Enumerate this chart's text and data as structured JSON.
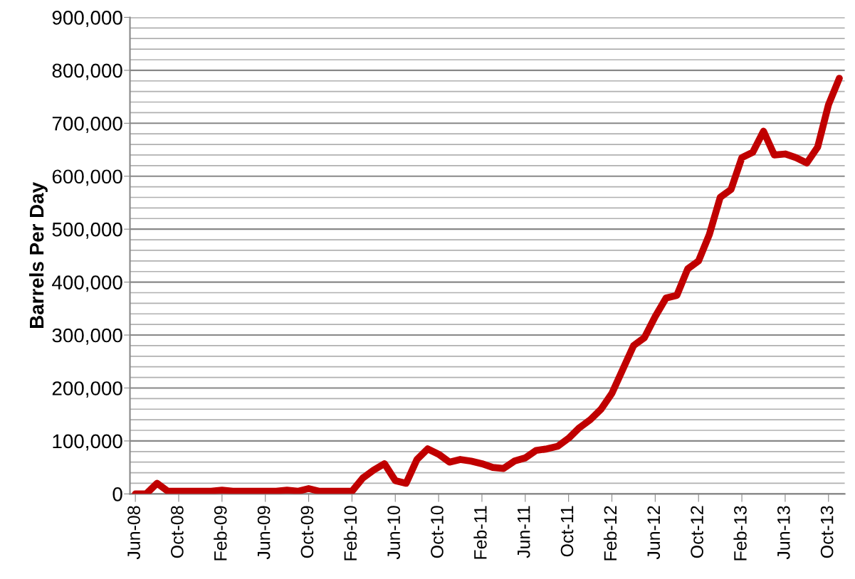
{
  "chart_data": {
    "type": "line",
    "ylabel": "Barrels Per Day",
    "categories": [
      "Jun-08",
      null,
      null,
      null,
      "Oct-08",
      null,
      null,
      null,
      "Feb-09",
      null,
      null,
      null,
      "Jun-09",
      null,
      null,
      null,
      "Oct-09",
      null,
      null,
      null,
      "Feb-10",
      null,
      null,
      null,
      "Jun-10",
      null,
      null,
      null,
      "Oct-10",
      null,
      null,
      null,
      "Feb-11",
      null,
      null,
      null,
      "Jun-11",
      null,
      null,
      null,
      "Oct-11",
      null,
      null,
      null,
      "Feb-12",
      null,
      null,
      null,
      "Jun-12",
      null,
      null,
      null,
      "Oct-12",
      null,
      null,
      null,
      "Feb-13",
      null,
      null,
      null,
      "Jun-13",
      null,
      null,
      null,
      "Oct-13",
      null
    ],
    "series": [
      {
        "color": "#c00000",
        "values": [
          0,
          0,
          20000,
          5000,
          5000,
          5000,
          5000,
          5000,
          7000,
          5000,
          5000,
          5000,
          5000,
          5000,
          7000,
          5000,
          10000,
          5000,
          5000,
          5000,
          5000,
          30000,
          45000,
          57000,
          25000,
          20000,
          65000,
          85000,
          75000,
          60000,
          65000,
          62000,
          57000,
          50000,
          48000,
          62000,
          68000,
          82000,
          85000,
          90000,
          105000,
          125000,
          140000,
          160000,
          190000,
          235000,
          280000,
          295000,
          335000,
          370000,
          375000,
          425000,
          440000,
          490000,
          560000,
          575000,
          635000,
          645000,
          685000,
          640000,
          642000,
          635000,
          625000,
          655000,
          735000,
          785000
        ]
      }
    ],
    "ylim": [
      0,
      900000
    ],
    "yticks": [
      {
        "value": 0,
        "label": "0"
      },
      {
        "value": 20000,
        "label": null
      },
      {
        "value": 40000,
        "label": null
      },
      {
        "value": 60000,
        "label": null
      },
      {
        "value": 80000,
        "label": null
      },
      {
        "value": 100000,
        "label": "100,000"
      },
      {
        "value": 120000,
        "label": null
      },
      {
        "value": 140000,
        "label": null
      },
      {
        "value": 160000,
        "label": null
      },
      {
        "value": 180000,
        "label": null
      },
      {
        "value": 200000,
        "label": "200,000"
      },
      {
        "value": 220000,
        "label": null
      },
      {
        "value": 240000,
        "label": null
      },
      {
        "value": 260000,
        "label": null
      },
      {
        "value": 280000,
        "label": null
      },
      {
        "value": 300000,
        "label": "300,000"
      },
      {
        "value": 320000,
        "label": null
      },
      {
        "value": 340000,
        "label": null
      },
      {
        "value": 360000,
        "label": null
      },
      {
        "value": 380000,
        "label": null
      },
      {
        "value": 400000,
        "label": "400,000"
      },
      {
        "value": 420000,
        "label": null
      },
      {
        "value": 440000,
        "label": null
      },
      {
        "value": 460000,
        "label": null
      },
      {
        "value": 480000,
        "label": null
      },
      {
        "value": 500000,
        "label": "500,000"
      },
      {
        "value": 520000,
        "label": null
      },
      {
        "value": 540000,
        "label": null
      },
      {
        "value": 560000,
        "label": null
      },
      {
        "value": 580000,
        "label": null
      },
      {
        "value": 600000,
        "label": "600,000"
      },
      {
        "value": 620000,
        "label": null
      },
      {
        "value": 640000,
        "label": null
      },
      {
        "value": 660000,
        "label": null
      },
      {
        "value": 680000,
        "label": null
      },
      {
        "value": 700000,
        "label": "700,000"
      },
      {
        "value": 720000,
        "label": null
      },
      {
        "value": 740000,
        "label": null
      },
      {
        "value": 760000,
        "label": null
      },
      {
        "value": 780000,
        "label": null
      },
      {
        "value": 800000,
        "label": "800,000"
      },
      {
        "value": 820000,
        "label": null
      },
      {
        "value": 840000,
        "label": null
      },
      {
        "value": 860000,
        "label": null
      },
      {
        "value": 880000,
        "label": null
      },
      {
        "value": 900000,
        "label": "900,000"
      }
    ],
    "grid": "y",
    "marker": "none",
    "line_style": "solid"
  }
}
